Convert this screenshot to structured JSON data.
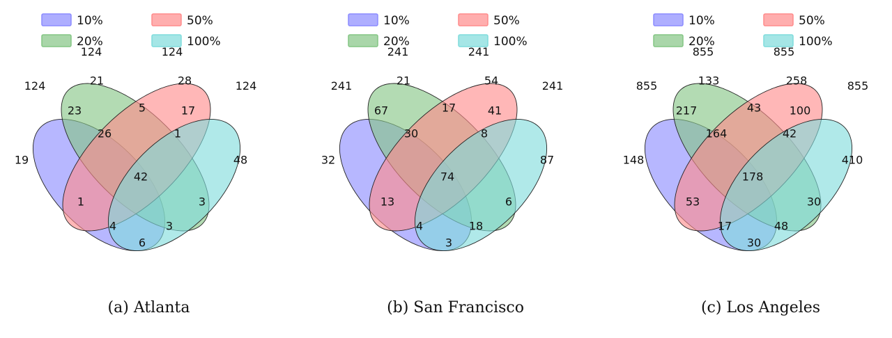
{
  "legend": [
    {
      "label": "10%",
      "color": "#8b8bff"
    },
    {
      "label": "50%",
      "color": "#ff8b8b"
    },
    {
      "label": "20%",
      "color": "#84c584"
    },
    {
      "label": "100%",
      "color": "#7fdcdc"
    }
  ],
  "panels": [
    {
      "caption": "(a) Atlanta",
      "totals": {
        "set_10": "124",
        "set_20": "124",
        "set_50": "124",
        "set_100": "124"
      },
      "regions": {
        "only_10": "19",
        "only_20": "21",
        "only_50": "28",
        "only_100": "48",
        "r10_20": "23",
        "r20_50": "5",
        "r50_100": "17",
        "r10_20_50": "26",
        "r20_50_100": "1",
        "all": "42",
        "r10_50": "1",
        "r20_100": "3",
        "r10_50_100": "4",
        "r10_20_100": "3",
        "r10_100": "6"
      }
    },
    {
      "caption": "(b) San Francisco",
      "totals": {
        "set_10": "241",
        "set_20": "241",
        "set_50": "241",
        "set_100": "241"
      },
      "regions": {
        "only_10": "32",
        "only_20": "21",
        "only_50": "54",
        "only_100": "87",
        "r10_20": "67",
        "r20_50": "17",
        "r50_100": "41",
        "r10_20_50": "30",
        "r20_50_100": "8",
        "all": "74",
        "r10_50": "13",
        "r20_100": "6",
        "r10_50_100": "4",
        "r10_20_100": "18",
        "r10_100": "3"
      }
    },
    {
      "caption": "(c) Los Angeles",
      "totals": {
        "set_10": "855",
        "set_20": "855",
        "set_50": "855",
        "set_100": "855"
      },
      "regions": {
        "only_10": "148",
        "only_20": "133",
        "only_50": "258",
        "only_100": "410",
        "r10_20": "217",
        "r20_50": "43",
        "r50_100": "100",
        "r10_20_50": "164",
        "r20_50_100": "42",
        "all": "178",
        "r10_50": "53",
        "r20_100": "30",
        "r10_50_100": "17",
        "r10_20_100": "48",
        "r10_100": "30"
      }
    }
  ]
}
